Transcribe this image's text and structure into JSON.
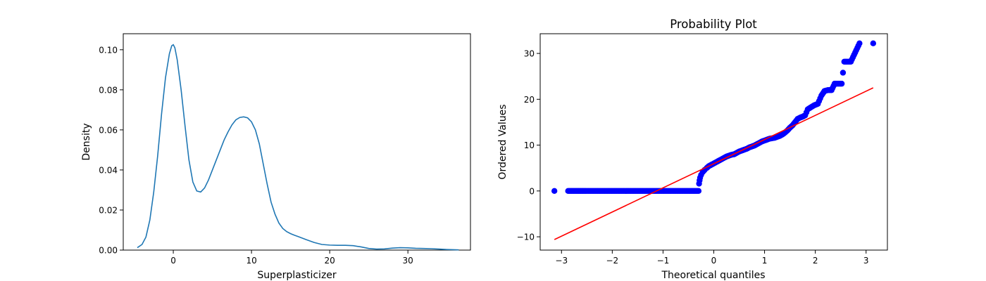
{
  "chart_data": [
    {
      "type": "line",
      "title": "",
      "xlabel": "Superplasticizer",
      "ylabel": "Density",
      "xlim": [
        -6.4,
        38.0
      ],
      "ylim": [
        0.0,
        0.108
      ],
      "xticks": [
        0,
        10,
        20,
        30
      ],
      "xtick_labels": [
        "0",
        "10",
        "20",
        "30"
      ],
      "yticks": [
        0.0,
        0.02,
        0.04,
        0.06,
        0.08,
        0.1
      ],
      "ytick_labels": [
        "0.00",
        "0.02",
        "0.04",
        "0.06",
        "0.08",
        "0.10"
      ],
      "grid": false,
      "line_color": "#1f77b4",
      "series": [
        {
          "x": [
            -4.6,
            -4.0,
            -3.5,
            -3.0,
            -2.5,
            -2.0,
            -1.5,
            -1.0,
            -0.5,
            -0.2,
            0.0,
            0.2,
            0.5,
            1.0,
            1.5,
            2.0,
            2.5,
            3.0,
            3.5,
            4.0,
            4.5,
            5.0,
            5.5,
            6.0,
            6.5,
            7.0,
            7.5,
            8.0,
            8.5,
            9.0,
            9.5,
            10.0,
            10.5,
            11.0,
            11.5,
            12.0,
            12.5,
            13.0,
            13.5,
            14.0,
            14.5,
            15.0,
            15.5,
            16.0,
            17.0,
            18.0,
            19.0,
            20.0,
            21.0,
            22.0,
            23.0,
            24.0,
            25.0,
            26.0,
            27.0,
            28.0,
            29.0,
            30.0,
            31.0,
            32.0,
            33.0,
            34.0,
            35.0,
            36.5
          ],
          "y": [
            0.0012,
            0.0028,
            0.0065,
            0.015,
            0.029,
            0.047,
            0.068,
            0.086,
            0.098,
            0.102,
            0.1025,
            0.101,
            0.095,
            0.08,
            0.062,
            0.045,
            0.034,
            0.0295,
            0.029,
            0.031,
            0.035,
            0.04,
            0.045,
            0.05,
            0.055,
            0.059,
            0.0625,
            0.065,
            0.0662,
            0.0665,
            0.066,
            0.064,
            0.06,
            0.053,
            0.043,
            0.033,
            0.024,
            0.018,
            0.0135,
            0.0108,
            0.0092,
            0.0082,
            0.0074,
            0.0067,
            0.0052,
            0.0038,
            0.0028,
            0.0025,
            0.0024,
            0.0024,
            0.0022,
            0.0016,
            0.0008,
            0.0005,
            0.0006,
            0.001,
            0.0012,
            0.0011,
            0.0009,
            0.0008,
            0.0007,
            0.0005,
            0.0003,
            0.0001
          ]
        }
      ]
    },
    {
      "type": "scatter",
      "title": "Probability Plot",
      "xlabel": "Theoretical quantiles",
      "ylabel": "Ordered Values",
      "xlim": [
        -3.42,
        3.42
      ],
      "ylim": [
        -12.9,
        34.3
      ],
      "xticks": [
        -3,
        -2,
        -1,
        0,
        1,
        2,
        3
      ],
      "xtick_labels": [
        "−3",
        "−2",
        "−1",
        "0",
        "1",
        "2",
        "3"
      ],
      "yticks": [
        -10,
        0,
        10,
        20,
        30
      ],
      "ytick_labels": [
        "−10",
        "0",
        "10",
        "20",
        "30"
      ],
      "grid": false,
      "point_color": "#0000ff",
      "line_color": "#ff0000",
      "fit_line": {
        "x": [
          -3.14,
          3.14
        ],
        "y": [
          -10.6,
          22.5
        ]
      },
      "series": [
        {
          "name": "",
          "points": [
            [
              -3.14,
              0
            ],
            [
              -2.87,
              0
            ],
            [
              -2.7,
              0
            ],
            [
              -2.6,
              0
            ],
            [
              -2.52,
              0
            ],
            [
              -2.45,
              0
            ],
            [
              -2.38,
              0
            ],
            [
              -2.31,
              0
            ],
            [
              -2.24,
              0
            ],
            [
              -2.17,
              0
            ],
            [
              -2.1,
              0
            ],
            [
              -2.03,
              0
            ],
            [
              -1.96,
              0
            ],
            [
              -1.89,
              0
            ],
            [
              -1.82,
              0
            ],
            [
              -1.75,
              0
            ],
            [
              -1.68,
              0
            ],
            [
              -1.61,
              0
            ],
            [
              -1.54,
              0
            ],
            [
              -1.47,
              0
            ],
            [
              -1.4,
              0
            ],
            [
              -1.33,
              0
            ],
            [
              -1.26,
              0
            ],
            [
              -1.19,
              0
            ],
            [
              -1.12,
              0
            ],
            [
              -1.05,
              0
            ],
            [
              -0.98,
              0
            ],
            [
              -0.91,
              0
            ],
            [
              -0.84,
              0
            ],
            [
              -0.77,
              0
            ],
            [
              -0.7,
              0
            ],
            [
              -0.63,
              0
            ],
            [
              -0.56,
              0
            ],
            [
              -0.49,
              0
            ],
            [
              -0.42,
              0
            ],
            [
              -0.35,
              0
            ],
            [
              -0.3,
              0
            ],
            [
              -0.29,
              1.6
            ],
            [
              -0.28,
              2.3
            ],
            [
              -0.27,
              2.9
            ],
            [
              -0.25,
              3.5
            ],
            [
              -0.22,
              4.1
            ],
            [
              -0.18,
              4.6
            ],
            [
              -0.14,
              5.0
            ],
            [
              -0.1,
              5.4
            ],
            [
              -0.05,
              5.7
            ],
            [
              0.0,
              6.0
            ],
            [
              0.05,
              6.3
            ],
            [
              0.1,
              6.6
            ],
            [
              0.15,
              6.9
            ],
            [
              0.2,
              7.2
            ],
            [
              0.25,
              7.5
            ],
            [
              0.3,
              7.7
            ],
            [
              0.35,
              7.9
            ],
            [
              0.4,
              8.0
            ],
            [
              0.45,
              8.3
            ],
            [
              0.5,
              8.6
            ],
            [
              0.55,
              8.8
            ],
            [
              0.6,
              9.0
            ],
            [
              0.65,
              9.2
            ],
            [
              0.7,
              9.5
            ],
            [
              0.75,
              9.7
            ],
            [
              0.8,
              9.9
            ],
            [
              0.85,
              10.2
            ],
            [
              0.9,
              10.5
            ],
            [
              0.95,
              10.8
            ],
            [
              1.0,
              11.0
            ],
            [
              1.05,
              11.2
            ],
            [
              1.1,
              11.4
            ],
            [
              1.15,
              11.5
            ],
            [
              1.2,
              11.6
            ],
            [
              1.25,
              11.8
            ],
            [
              1.3,
              12.0
            ],
            [
              1.35,
              12.3
            ],
            [
              1.4,
              12.7
            ],
            [
              1.45,
              13.2
            ],
            [
              1.5,
              13.8
            ],
            [
              1.55,
              14.3
            ],
            [
              1.6,
              15.0
            ],
            [
              1.65,
              15.7
            ],
            [
              1.7,
              16.0
            ],
            [
              1.75,
              16.2
            ],
            [
              1.8,
              16.5
            ],
            [
              1.85,
              17.8
            ],
            [
              1.92,
              18.3
            ],
            [
              1.98,
              18.7
            ],
            [
              2.05,
              19.0
            ],
            [
              2.12,
              20.8
            ],
            [
              2.18,
              21.8
            ],
            [
              2.25,
              22.0
            ],
            [
              2.32,
              22.0
            ],
            [
              2.38,
              23.4
            ],
            [
              2.45,
              23.4
            ],
            [
              2.52,
              23.4
            ],
            [
              2.57,
              28.2
            ],
            [
              2.63,
              28.2
            ],
            [
              2.7,
              28.2
            ],
            [
              2.87,
              32.2
            ],
            [
              3.14,
              32.2
            ]
          ]
        }
      ]
    }
  ]
}
